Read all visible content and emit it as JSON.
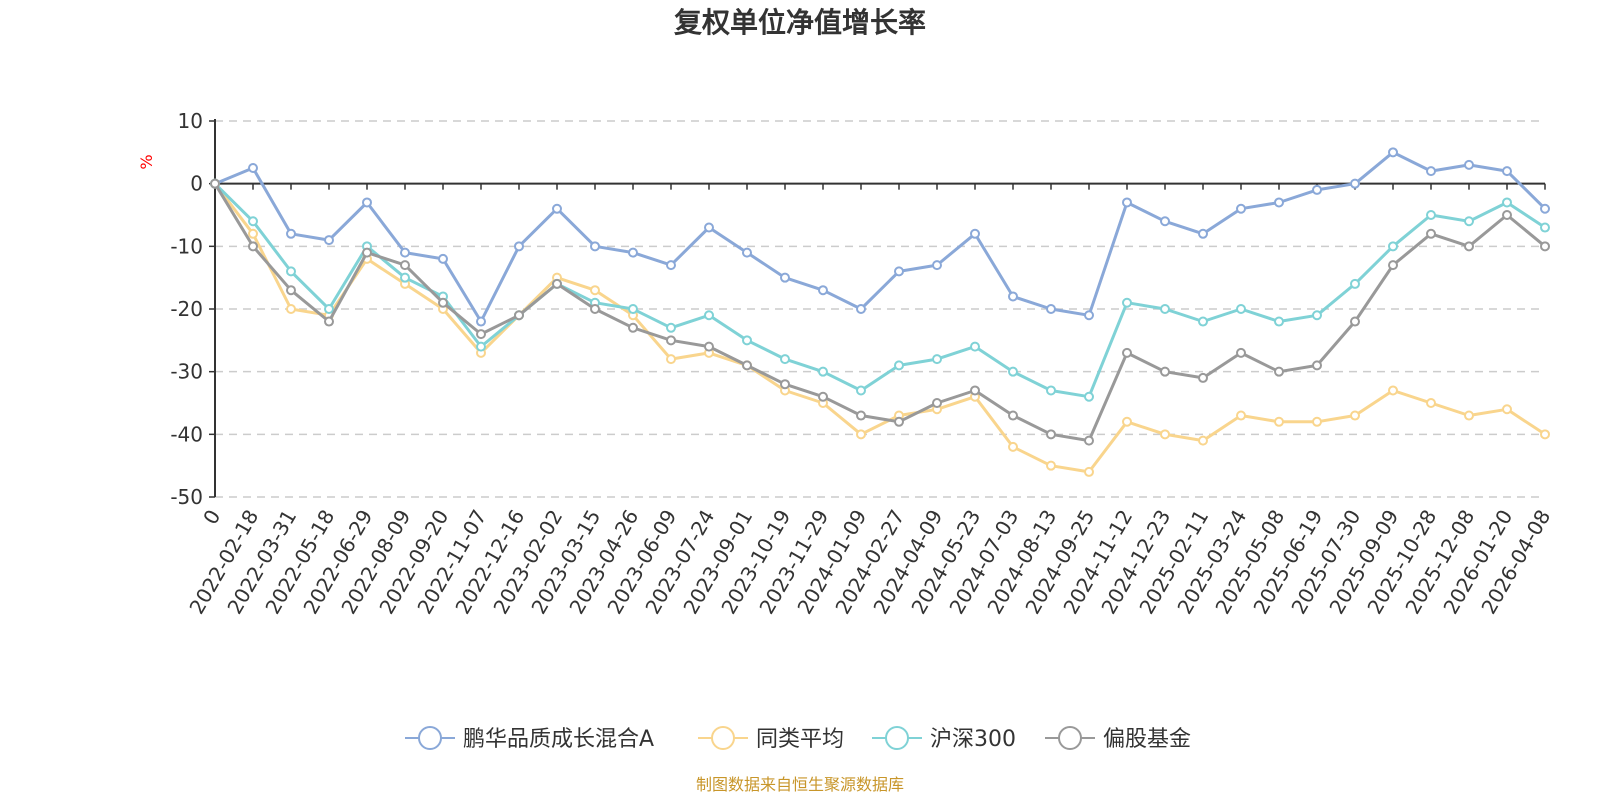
{
  "chart_data": {
    "type": "line",
    "title": "复权单位净值增长率",
    "ylabel": "%",
    "xlabel": "",
    "ylim": [
      -50,
      10
    ],
    "yticks": [
      "10",
      "0",
      "-10",
      "-20",
      "-30",
      "-40",
      "-50"
    ],
    "grid": true,
    "legend_position": "bottom",
    "categories": [
      "0",
      "2022-02-18",
      "2022-03-31",
      "2022-05-18",
      "2022-06-29",
      "2022-08-09",
      "2022-09-20",
      "2022-11-07",
      "2022-12-16",
      "2023-02-02",
      "2023-03-15",
      "2023-04-26",
      "2023-06-09",
      "2023-07-24",
      "2023-09-01",
      "2023-10-19",
      "2023-11-29",
      "2024-01-09",
      "2024-02-27",
      "2024-04-09",
      "2024-05-23",
      "2024-07-03",
      "2024-08-13",
      "2024-09-25",
      "2024-11-12",
      "2024-12-23",
      "2025-02-11",
      "2025-03-24",
      "2025-05-08",
      "2025-06-19",
      "2025-07-30",
      "2025-09-09",
      "2025-10-28",
      "2025-12-08",
      "2026-01-20",
      "2026-04-08"
    ],
    "series": [
      {
        "name": "鹏华品质成长混合A",
        "color": "#8aa8d8",
        "values": [
          0,
          2.5,
          -8,
          -9,
          -3,
          -11,
          -12,
          -22,
          -10,
          -4,
          -10,
          -11,
          -13,
          -7,
          -11,
          -15,
          -17,
          -20,
          -14,
          -13,
          -8,
          -18,
          -20,
          -21,
          -3,
          -6,
          -8,
          -4,
          -3,
          -1,
          0,
          5,
          2,
          3,
          2,
          -4
        ]
      },
      {
        "name": "同类平均",
        "color": "#f9d58d",
        "values": [
          0,
          -8,
          -20,
          -21,
          -12,
          -16,
          -20,
          -27,
          -21,
          -15,
          -17,
          -21,
          -28,
          -27,
          -29,
          -33,
          -35,
          -40,
          -37,
          -36,
          -34,
          -42,
          -45,
          -46,
          -38,
          -40,
          -41,
          -37,
          -38,
          -38,
          -37,
          -33,
          -35,
          -37,
          -36,
          -40
        ]
      },
      {
        "name": "沪深300",
        "color": "#7fd2d6",
        "values": [
          0,
          -6,
          -14,
          -20,
          -10,
          -15,
          -18,
          -26,
          -21,
          -16,
          -19,
          -20,
          -23,
          -21,
          -25,
          -28,
          -30,
          -33,
          -29,
          -28,
          -26,
          -30,
          -33,
          -34,
          -19,
          -20,
          -22,
          -20,
          -22,
          -21,
          -16,
          -10,
          -5,
          -6,
          -3,
          -7
        ]
      },
      {
        "name": "偏股基金",
        "color": "#999999",
        "values": [
          0,
          -10,
          -17,
          -22,
          -11,
          -13,
          -19,
          -24,
          -21,
          -16,
          -20,
          -23,
          -25,
          -26,
          -29,
          -32,
          -34,
          -37,
          -38,
          -35,
          -33,
          -37,
          -40,
          -41,
          -27,
          -30,
          -31,
          -27,
          -30,
          -29,
          -22,
          -13,
          -8,
          -10,
          -5,
          -10
        ]
      }
    ]
  },
  "legend": [
    "鹏华品质成长混合A",
    "同类平均",
    "沪深300",
    "偏股基金"
  ],
  "source_note": "制图数据来自恒生聚源数据库"
}
